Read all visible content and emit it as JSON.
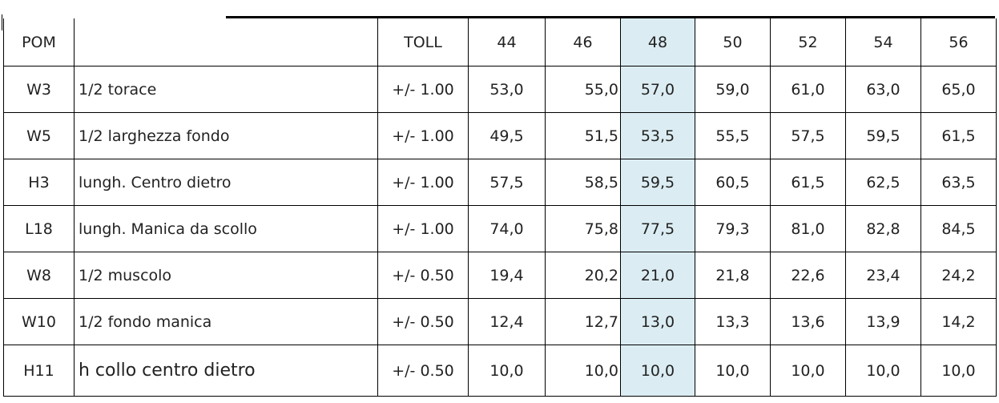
{
  "headers": {
    "pom": "POM",
    "desc": "",
    "toll": "TOLL",
    "sizes": [
      "44",
      "46",
      "48",
      "50",
      "52",
      "54",
      "56"
    ]
  },
  "rows": [
    {
      "pom": "W3",
      "desc": "1/2 torace",
      "toll": "+/- 1.00",
      "values": [
        "53,0",
        "55,0",
        "57,0",
        "59,0",
        "61,0",
        "63,0",
        "65,0"
      ]
    },
    {
      "pom": "W5",
      "desc": "1/2 larghezza fondo",
      "toll": "+/- 1.00",
      "values": [
        "49,5",
        "51,5",
        "53,5",
        "55,5",
        "57,5",
        "59,5",
        "61,5"
      ]
    },
    {
      "pom": "H3",
      "desc": "lungh. Centro dietro",
      "toll": "+/- 1.00",
      "values": [
        "57,5",
        "58,5",
        "59,5",
        "60,5",
        "61,5",
        "62,5",
        "63,5"
      ]
    },
    {
      "pom": "L18",
      "desc": "lungh. Manica da scollo",
      "toll": "+/- 1.00",
      "values": [
        "74,0",
        "75,8",
        "77,5",
        "79,3",
        "81,0",
        "82,8",
        "84,5"
      ]
    },
    {
      "pom": "W8",
      "desc": "1/2 muscolo",
      "toll": "+/- 0.50",
      "values": [
        "19,4",
        "20,2",
        "21,0",
        "21,8",
        "22,6",
        "23,4",
        "24,2"
      ]
    },
    {
      "pom": "W10",
      "desc": "1/2 fondo manica",
      "toll": "+/- 0.50",
      "values": [
        "12,4",
        "12,7",
        "13,0",
        "13,3",
        "13,6",
        "13,9",
        "14,2"
      ]
    },
    {
      "pom": "H11",
      "desc": "h collo centro dietro",
      "toll": "+/- 0.50",
      "values": [
        "10,0",
        "10,0",
        "10,0",
        "10,0",
        "10,0",
        "10,0",
        "10,0"
      ]
    }
  ],
  "highlight_color": "#dbedf3"
}
